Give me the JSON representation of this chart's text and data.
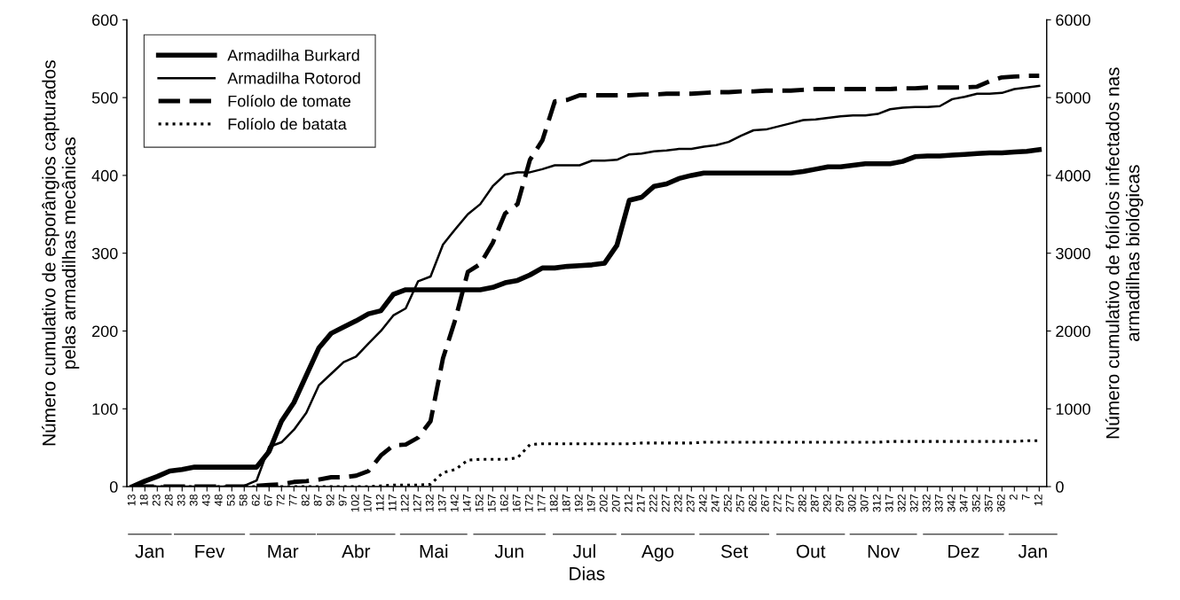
{
  "chart_data": {
    "type": "line",
    "xlabel": "Dias",
    "ylabel": "Número cumulativo de esporângios capturados\npelas armadilhas mecânicas",
    "y2label": "Número cumulativo de folíolos infectados nas\narmadilhas biológicas",
    "categories": [
      "13",
      "18",
      "23",
      "28",
      "33",
      "38",
      "43",
      "48",
      "53",
      "58",
      "62",
      "67",
      "72",
      "77",
      "82",
      "87",
      "92",
      "97",
      "102",
      "107",
      "112",
      "117",
      "122",
      "127",
      "132",
      "137",
      "142",
      "147",
      "152",
      "157",
      "162",
      "167",
      "172",
      "177",
      "182",
      "187",
      "192",
      "197",
      "202",
      "207",
      "212",
      "217",
      "222",
      "227",
      "232",
      "237",
      "242",
      "247",
      "252",
      "257",
      "262",
      "267",
      "272",
      "277",
      "282",
      "287",
      "292",
      "297",
      "302",
      "307",
      "312",
      "317",
      "322",
      "327",
      "332",
      "337",
      "342",
      "347",
      "352",
      "357",
      "362",
      "2",
      "7",
      "12"
    ],
    "series": [
      {
        "name": "Armadilha Burkard",
        "color": "#000000",
        "line_style": "solid",
        "values": [
          0,
          7,
          13,
          20,
          22,
          25,
          25,
          25,
          25,
          25,
          25,
          45,
          84,
          108,
          143,
          178,
          197,
          205,
          213,
          222,
          226,
          247,
          253,
          253,
          253,
          253,
          253,
          253,
          253,
          256,
          262,
          265,
          272,
          281,
          281,
          283,
          284,
          285,
          287,
          310,
          368,
          372,
          386,
          389,
          396,
          400,
          403,
          403,
          403,
          403,
          403,
          403,
          403,
          403,
          405,
          408,
          411,
          411,
          413,
          415,
          415,
          415,
          418,
          424,
          425,
          425,
          426,
          427,
          428,
          429,
          429,
          430,
          431,
          433
        ]
      },
      {
        "name": "Armadilha Rotorod",
        "color": "#000000",
        "line_style": "solid",
        "values": [
          0,
          0,
          0,
          0,
          0,
          0,
          0,
          0,
          0,
          1,
          8,
          51,
          57,
          73,
          95,
          130,
          145,
          160,
          167,
          184,
          200,
          220,
          229,
          264,
          270,
          311,
          331,
          350,
          363,
          386,
          401,
          404,
          404,
          408,
          413,
          413,
          413,
          419,
          419,
          420,
          427,
          428,
          431,
          432,
          434,
          434,
          437,
          439,
          443,
          451,
          458,
          459,
          463,
          467,
          471,
          472,
          474,
          476,
          477,
          477,
          479,
          485,
          487,
          488,
          488,
          489,
          498,
          501,
          505,
          505,
          506,
          511,
          513,
          515
        ]
      },
      {
        "name": "Folíolo de tomate",
        "color": "#000000",
        "line_style": "dashed",
        "axis": "y2",
        "values": [
          0,
          0,
          0,
          0,
          0,
          0,
          0,
          0,
          0,
          0,
          10,
          20,
          30,
          60,
          70,
          90,
          120,
          120,
          140,
          200,
          400,
          530,
          540,
          630,
          840,
          1650,
          2150,
          2760,
          2860,
          3130,
          3510,
          3630,
          4200,
          4450,
          4950,
          4970,
          5030,
          5030,
          5030,
          5030,
          5030,
          5040,
          5040,
          5050,
          5050,
          5050,
          5060,
          5070,
          5070,
          5080,
          5080,
          5090,
          5090,
          5090,
          5100,
          5110,
          5110,
          5110,
          5110,
          5110,
          5110,
          5110,
          5120,
          5120,
          5130,
          5130,
          5130,
          5130,
          5140,
          5210,
          5260,
          5270,
          5280,
          5280
        ]
      },
      {
        "name": "Folíolo de batata",
        "color": "#000000",
        "line_style": "dotted",
        "axis": "y2",
        "values": [
          0,
          0,
          0,
          0,
          0,
          0,
          0,
          0,
          0,
          0,
          0,
          0,
          0,
          0,
          0,
          0,
          0,
          0,
          0,
          0,
          10,
          20,
          20,
          20,
          30,
          180,
          220,
          340,
          350,
          350,
          350,
          370,
          540,
          550,
          550,
          550,
          550,
          550,
          550,
          550,
          550,
          560,
          560,
          560,
          560,
          560,
          570,
          570,
          570,
          570,
          570,
          570,
          570,
          570,
          570,
          570,
          570,
          570,
          570,
          570,
          570,
          580,
          580,
          580,
          580,
          580,
          580,
          580,
          580,
          580,
          580,
          580,
          590,
          590
        ]
      }
    ],
    "ylim": [
      0,
      600
    ],
    "yticks": [
      0,
      100,
      200,
      300,
      400,
      500,
      600
    ],
    "y2lim": [
      0,
      6000
    ],
    "y2ticks": [
      0,
      1000,
      2000,
      3000,
      4000,
      5000,
      6000
    ],
    "grid": false,
    "legend": "top left",
    "marker": "none",
    "annotations": [
      "Jan",
      "Fev",
      "Mar",
      "Abr",
      "Mai",
      "Jun",
      "Jul",
      "Ago",
      "Set",
      "Out",
      "Nov",
      "Dez",
      "Jan"
    ]
  }
}
